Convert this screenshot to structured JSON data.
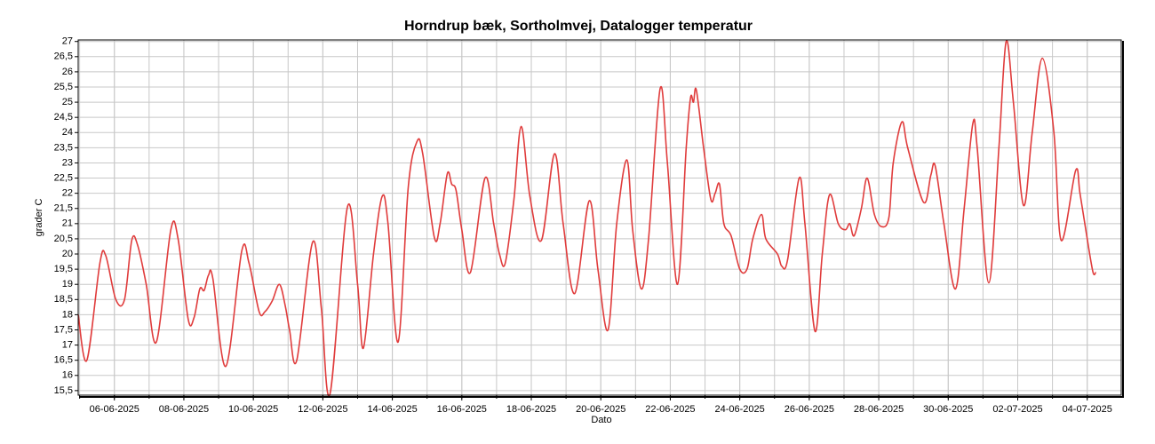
{
  "chart_data": {
    "type": "line",
    "title": "Horndrup bæk, Sortholmvej, Datalogger temperatur",
    "xlabel": "Dato",
    "ylabel": "grader C",
    "color": "#e03c3c",
    "grid": true,
    "xlim": [
      "2025-06-04T23:00",
      "2025-07-04T23:30"
    ],
    "xticks": [
      {
        "value": "2025-06-06",
        "label": "06-06-2025"
      },
      {
        "value": "2025-06-08",
        "label": "08-06-2025"
      },
      {
        "value": "2025-06-10",
        "label": "10-06-2025"
      },
      {
        "value": "2025-06-12",
        "label": "12-06-2025"
      },
      {
        "value": "2025-06-14",
        "label": "14-06-2025"
      },
      {
        "value": "2025-06-16",
        "label": "16-06-2025"
      },
      {
        "value": "2025-06-18",
        "label": "18-06-2025"
      },
      {
        "value": "2025-06-20",
        "label": "20-06-2025"
      },
      {
        "value": "2025-06-22",
        "label": "22-06-2025"
      },
      {
        "value": "2025-06-24",
        "label": "24-06-2025"
      },
      {
        "value": "2025-06-26",
        "label": "26-06-2025"
      },
      {
        "value": "2025-06-28",
        "label": "28-06-2025"
      },
      {
        "value": "2025-06-30",
        "label": "30-06-2025"
      },
      {
        "value": "2025-07-02",
        "label": "02-07-2025"
      },
      {
        "value": "2025-07-04",
        "label": "04-07-2025"
      }
    ],
    "ylim": [
      15.35,
      27.05
    ],
    "yticks": [
      {
        "value": 15.5,
        "label": "15,5"
      },
      16,
      {
        "value": 16.5,
        "label": "16,5"
      },
      17,
      {
        "value": 17.5,
        "label": "17,5"
      },
      18,
      {
        "value": 18.5,
        "label": "18,5"
      },
      19,
      {
        "value": 19.5,
        "label": "19,5"
      },
      20,
      {
        "value": 20.5,
        "label": "20,5"
      },
      21,
      {
        "value": 21.5,
        "label": "21,5"
      },
      22,
      {
        "value": 22.5,
        "label": "22,5"
      },
      23,
      {
        "value": 23.5,
        "label": "23,5"
      },
      24,
      {
        "value": 24.5,
        "label": "24,5"
      },
      25,
      {
        "value": 25.5,
        "label": "25,5"
      },
      26,
      {
        "value": 26.5,
        "label": "26,5"
      },
      27
    ],
    "x": [
      "2025-06-04T23:00",
      "2025-06-05T05:00",
      "2025-06-05T14:00",
      "2025-06-05T18:00",
      "2025-06-06T01:00",
      "2025-06-06T07:00",
      "2025-06-06T12:00",
      "2025-06-06T16:00",
      "2025-06-06T22:00",
      "2025-06-07T05:00",
      "2025-06-07T15:00",
      "2025-06-07T20:00",
      "2025-06-08T03:00",
      "2025-06-08T07:00",
      "2025-06-08T11:00",
      "2025-06-08T14:00",
      "2025-06-08T17:00",
      "2025-06-08T20:00",
      "2025-06-09T05:00",
      "2025-06-09T16:00",
      "2025-06-09T21:00",
      "2025-06-10T04:00",
      "2025-06-10T08:00",
      "2025-06-10T13:00",
      "2025-06-10T18:00",
      "2025-06-10T22:00",
      "2025-06-11T01:00",
      "2025-06-11T06:00",
      "2025-06-11T17:00",
      "2025-06-11T23:00",
      "2025-06-12T05:00",
      "2025-06-12T17:00",
      "2025-06-13T00:00",
      "2025-06-13T04:00",
      "2025-06-13T11:00",
      "2025-06-13T17:00",
      "2025-06-13T21:00",
      "2025-06-14T04:00",
      "2025-06-14T11:00",
      "2025-06-14T17:00",
      "2025-06-14T21:00",
      "2025-06-15T05:00",
      "2025-06-15T09:00",
      "2025-06-15T14:00",
      "2025-06-15T17:00",
      "2025-06-15T20:00",
      "2025-06-16T00:00",
      "2025-06-16T06:00",
      "2025-06-16T16:00",
      "2025-06-16T22:00",
      "2025-06-17T02:00",
      "2025-06-17T06:00",
      "2025-06-17T12:00",
      "2025-06-17T17:00",
      "2025-06-17T23:00",
      "2025-06-18T07:00",
      "2025-06-18T16:00",
      "2025-06-18T22:00",
      "2025-06-19T06:00",
      "2025-06-19T16:00",
      "2025-06-19T22:00",
      "2025-06-20T05:00",
      "2025-06-20T11:00",
      "2025-06-20T18:00",
      "2025-06-20T22:00",
      "2025-06-21T04:00",
      "2025-06-21T09:00",
      "2025-06-21T17:00",
      "2025-06-21T22:00",
      "2025-06-22T05:00",
      "2025-06-22T11:00",
      "2025-06-22T14:00",
      "2025-06-22T16:00",
      "2025-06-22T18:00",
      "2025-06-22T23:00",
      "2025-06-23T04:00",
      "2025-06-23T07:00",
      "2025-06-23T10:00",
      "2025-06-23T13:00",
      "2025-06-23T18:00",
      "2025-06-24T00:00",
      "2025-06-24T05:00",
      "2025-06-24T09:00",
      "2025-06-24T15:00",
      "2025-06-24T18:00",
      "2025-06-25T02:00",
      "2025-06-25T05:00",
      "2025-06-25T09:00",
      "2025-06-25T17:00",
      "2025-06-25T21:00",
      "2025-06-26T04:00",
      "2025-06-26T09:00",
      "2025-06-26T14:00",
      "2025-06-26T20:00",
      "2025-06-27T01:00",
      "2025-06-27T04:00",
      "2025-06-27T07:00",
      "2025-06-27T12:00",
      "2025-06-27T16:00",
      "2025-06-27T21:00",
      "2025-06-28T02:00",
      "2025-06-28T07:00",
      "2025-06-28T10:00",
      "2025-06-28T16:00",
      "2025-06-28T20:00",
      "2025-06-29T07:00",
      "2025-06-29T12:00",
      "2025-06-29T15:00",
      "2025-06-29T21:00",
      "2025-06-30T05:00",
      "2025-06-30T11:00",
      "2025-06-30T17:00",
      "2025-06-30T20:00",
      "2025-07-01T04:00",
      "2025-07-01T11:00",
      "2025-07-01T16:00",
      "2025-07-01T21:00",
      "2025-07-02T04:00",
      "2025-07-02T10:00",
      "2025-07-02T17:00",
      "2025-07-03T01:00",
      "2025-07-03T06:00",
      "2025-07-03T16:00",
      "2025-07-03T19:00",
      "2025-07-04T00:00",
      "2025-07-04T04:00",
      "2025-07-04T06:00"
    ],
    "values": [
      18.0,
      16.5,
      19.7,
      19.95,
      18.5,
      18.5,
      20.45,
      20.3,
      19.0,
      17.1,
      20.8,
      20.5,
      17.85,
      17.9,
      18.85,
      18.8,
      19.3,
      19.2,
      16.3,
      20.1,
      19.7,
      18.1,
      18.1,
      18.45,
      19.0,
      18.3,
      17.5,
      16.5,
      20.4,
      18.2,
      15.4,
      21.55,
      19.0,
      16.9,
      20.0,
      21.9,
      21.0,
      17.1,
      22.2,
      23.7,
      23.3,
      20.55,
      21.0,
      22.65,
      22.3,
      22.1,
      20.8,
      19.4,
      22.5,
      21.0,
      20.0,
      19.7,
      21.8,
      24.2,
      21.9,
      20.45,
      23.3,
      21.0,
      18.7,
      21.75,
      19.5,
      17.5,
      21.0,
      23.1,
      20.8,
      18.85,
      20.5,
      25.45,
      23.0,
      19.0,
      23.5,
      25.15,
      25.0,
      25.4,
      23.5,
      21.8,
      22.0,
      22.3,
      21.0,
      20.6,
      19.5,
      19.5,
      20.5,
      21.3,
      20.5,
      20.0,
      19.6,
      19.8,
      22.5,
      21.0,
      17.45,
      20.0,
      21.95,
      21.0,
      20.8,
      21.0,
      20.6,
      21.5,
      22.5,
      21.3,
      20.9,
      21.2,
      23.0,
      24.35,
      23.5,
      21.7,
      22.6,
      22.9,
      21.0,
      18.85,
      21.5,
      24.3,
      23.5,
      19.05,
      23.5,
      27.0,
      25.0,
      21.6,
      24.0,
      26.45,
      24.0,
      20.45,
      22.75,
      22.0,
      20.5,
      19.4,
      19.4
    ]
  }
}
